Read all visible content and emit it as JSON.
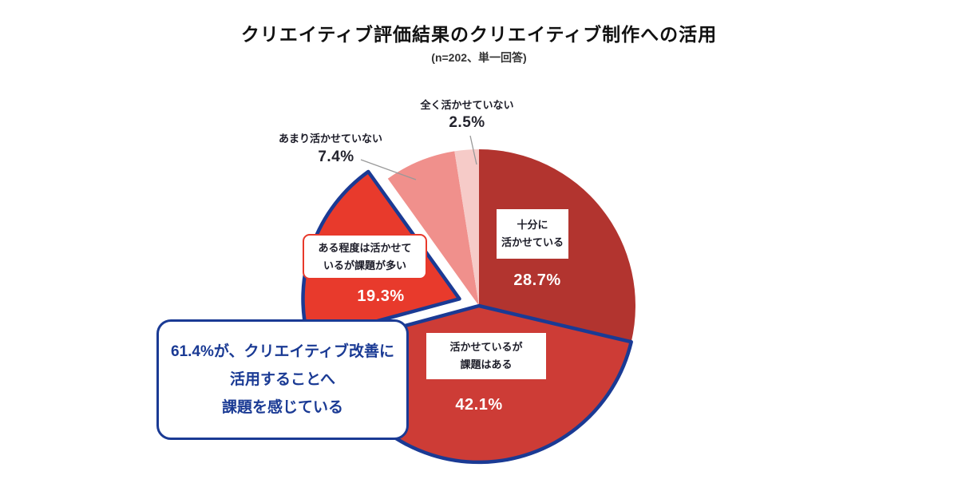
{
  "header": {
    "title": "クリエイティブ評価結果のクリエイティブ制作への活用",
    "subtitle": "(n=202、単一回答)"
  },
  "chart_data": {
    "type": "pie",
    "title": "クリエイティブ評価結果のクリエイティブ制作への活用",
    "subtitle": "(n=202、単一回答)",
    "sample_size": 202,
    "start_angle_deg": 0,
    "direction": "clockwise",
    "slices": [
      {
        "label": "十分に活かせている",
        "value": 28.7,
        "pct_label": "28.7%",
        "color": "#b2342f",
        "outlined": false,
        "exploded": false
      },
      {
        "label": "活かせているが課題はある",
        "value": 42.1,
        "pct_label": "42.1%",
        "color": "#cd3c36",
        "outlined": true,
        "exploded": false
      },
      {
        "label": "ある程度は活かせているが課題が多い",
        "value": 19.3,
        "pct_label": "19.3%",
        "color": "#e83a2c",
        "outlined": true,
        "exploded": true
      },
      {
        "label": "あまり活かせていない",
        "value": 7.4,
        "pct_label": "7.4%",
        "color": "#f0908c",
        "outlined": false,
        "exploded": false
      },
      {
        "label": "全く活かせていない",
        "value": 2.5,
        "pct_label": "2.5%",
        "color": "#f6cbc8",
        "outlined": false,
        "exploded": false
      }
    ],
    "outline_color": "#1a3a94",
    "annotation": "61.4%が、クリエイティブ改善に活用することへ課題を感じている"
  },
  "labels": {
    "none_at_all": "全く活かせていない",
    "none_at_all_pct": "2.5%",
    "not_much": "あまり活かせていない",
    "not_much_pct": "7.4%",
    "fully_line1": "十分に",
    "fully_line2": "活かせている",
    "fully_pct": "28.7%",
    "some_line1": "ある程度は活かせて",
    "some_line2": "いるが課題が多い",
    "some_pct": "19.3%",
    "issues_line1": "活かせているが",
    "issues_line2": "課題はある",
    "issues_pct": "42.1%"
  },
  "callout": {
    "line1": "61.4%が、クリエイティブ改善に",
    "line2": "活用することへ",
    "line3": "課題を感じている"
  },
  "colors": {
    "accent_blue": "#1a3a94",
    "highlight_red_border": "#e8392b",
    "leader_line": "#999999"
  }
}
